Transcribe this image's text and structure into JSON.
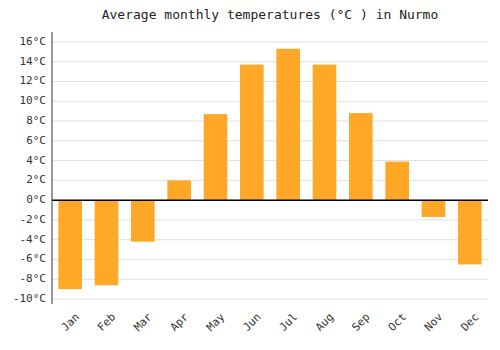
{
  "chart_data": {
    "type": "bar",
    "title": "Average monthly temperatures (°C ) in Nurmo",
    "categories": [
      "Jan",
      "Feb",
      "Mar",
      "Apr",
      "May",
      "Jun",
      "Jul",
      "Aug",
      "Sep",
      "Oct",
      "Nov",
      "Dec"
    ],
    "values": [
      -9.0,
      -8.6,
      -4.2,
      2.0,
      8.7,
      13.7,
      15.3,
      13.7,
      8.8,
      3.9,
      -1.7,
      -6.5
    ],
    "color": "#FFA726",
    "ylim": [
      -10.5,
      17
    ],
    "yticks": [
      {
        "value": -10,
        "label": "-10°C"
      },
      {
        "value": -8,
        "label": "-8°C"
      },
      {
        "value": -6,
        "label": "-6°C"
      },
      {
        "value": -4,
        "label": "-4°C"
      },
      {
        "value": -2,
        "label": "-2°C"
      },
      {
        "value": 0,
        "label": "0°C"
      },
      {
        "value": 2,
        "label": "2°C"
      },
      {
        "value": 4,
        "label": "4°C"
      },
      {
        "value": 6,
        "label": "6°C"
      },
      {
        "value": 8,
        "label": "8°C"
      },
      {
        "value": 10,
        "label": "10°C"
      },
      {
        "value": 12,
        "label": "12°C"
      },
      {
        "value": 14,
        "label": "14°C"
      },
      {
        "value": 16,
        "label": "16°C"
      }
    ],
    "grid": true
  }
}
